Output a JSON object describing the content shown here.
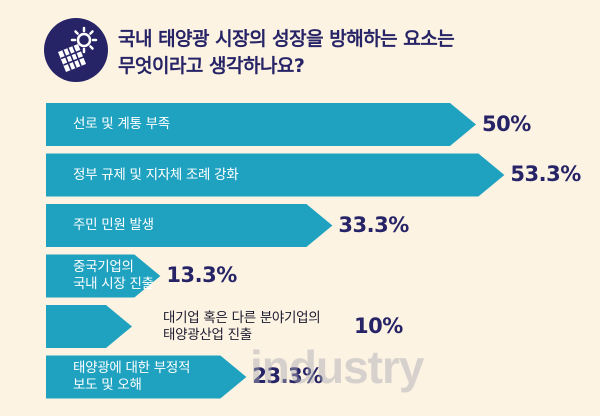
{
  "header": {
    "title_line1": "국내 태양광 시장의 성장을 방해하는 요소는",
    "title_line2": "무엇이라고 생각하나요?",
    "icon": "solar-panel-sun-icon"
  },
  "colors": {
    "bar": "#1fa2c0",
    "title": "#262466",
    "background": "#fdf3e3",
    "icon_bg": "#262466"
  },
  "watermark": "industry",
  "chart_data": {
    "type": "bar",
    "orientation": "horizontal",
    "title": "국내 태양광 시장의 성장을 방해하는 요소는 무엇이라고 생각하나요?",
    "unit": "%",
    "categories": [
      "선로 및 계통 부족",
      "정부 규제 및 지자체 조례 강화",
      "주민 민원 발생",
      "중국기업의 국내 시장 진출",
      "대기업 혹은 다른 분야기업의 태양광산업 진출",
      "태양광에 대한 부정적 보도 및 오해"
    ],
    "label_lines": [
      [
        "선로 및 계통 부족"
      ],
      [
        "정부 규제 및 지자체 조례 강화"
      ],
      [
        "주민 민원 발생"
      ],
      [
        "중국기업의",
        "국내 시장 진출"
      ],
      [
        "대기업 혹은 다른 분야기업의",
        "태양광산업 진출"
      ],
      [
        "태양광에 대한 부정적",
        "보도 및 오해"
      ]
    ],
    "values": [
      50,
      53.3,
      33.3,
      13.3,
      10,
      23.3
    ],
    "value_labels": [
      "50%",
      "53.3%",
      "33.3%",
      "13.3%",
      "10%",
      "23.3%"
    ]
  }
}
